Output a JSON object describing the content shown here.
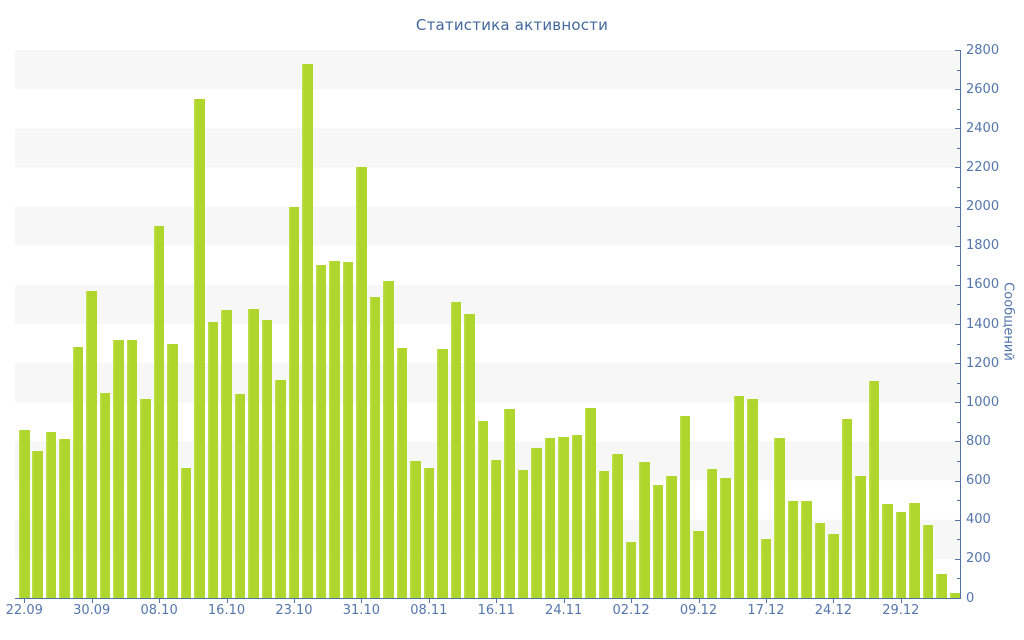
{
  "title": "Статистика активности",
  "colors": {
    "background": "#ffffff",
    "bar": "#aed62c",
    "bar_light_edge": "#bfe04e",
    "stripe": "#f7f7f7",
    "axis_line": "#5271a6",
    "tick_label": "#5476ad",
    "title_text": "#44689d"
  },
  "chart_data": {
    "type": "bar",
    "title": "Статистика активности",
    "xlabel": "",
    "ylabel": "Сообщений",
    "ylim": [
      0,
      2800
    ],
    "y_major_step": 200,
    "y_minor_step": 100,
    "legend": "none",
    "grid": "horizontal gray stripes every 200 units",
    "x_tick_labels": [
      "22.09",
      "30.09",
      "08.10",
      "16.10",
      "23.10",
      "31.10",
      "08.11",
      "16.11",
      "24.11",
      "02.12",
      "09.12",
      "17.12",
      "24.12",
      "29.12"
    ],
    "x_tick_every_n_bars": 5,
    "values": [
      860,
      750,
      850,
      815,
      1285,
      1570,
      1045,
      1320,
      1320,
      1015,
      1900,
      1300,
      665,
      2550,
      1410,
      1470,
      1040,
      1475,
      1420,
      1115,
      2000,
      2730,
      1700,
      1720,
      1715,
      2200,
      1540,
      1620,
      1275,
      700,
      665,
      1270,
      1515,
      1450,
      905,
      705,
      965,
      655,
      765,
      820,
      825,
      835,
      970,
      650,
      735,
      285,
      695,
      580,
      625,
      930,
      340,
      660,
      615,
      1030,
      1015,
      300,
      820,
      495,
      495,
      385,
      325,
      915,
      625,
      1110,
      480,
      440,
      485,
      375,
      125,
      25
    ]
  }
}
